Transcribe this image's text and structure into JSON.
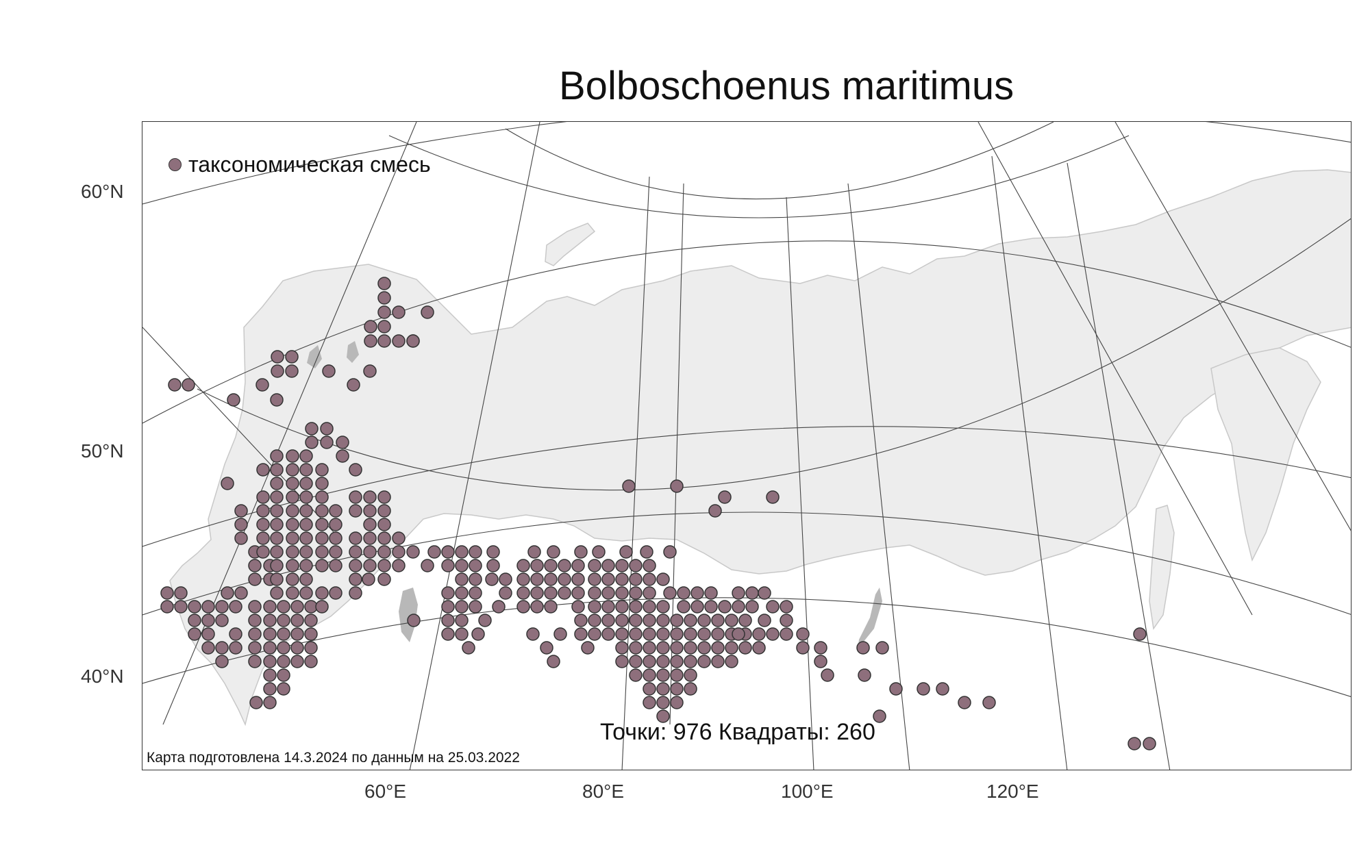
{
  "title": "Bolboschoenus maritimus",
  "legend": {
    "label": "таксономическая смесь",
    "color": "#8e6f7c"
  },
  "stats": "Точки: 976 Квадраты: 260",
  "footnote": "Карта подготовлена 14.3.2024 по данным на 25.03.2022",
  "axes": {
    "lat_labels": [
      "60°N",
      "50°N",
      "40°N"
    ],
    "lon_labels": [
      "60°E",
      "80°E",
      "100°E",
      "120°E"
    ]
  },
  "colors": {
    "land": "#ededed",
    "coast": "#bdbdbd",
    "water": "#b8b8b8",
    "grid": "#444444",
    "point": "#8e6f7c"
  }
}
